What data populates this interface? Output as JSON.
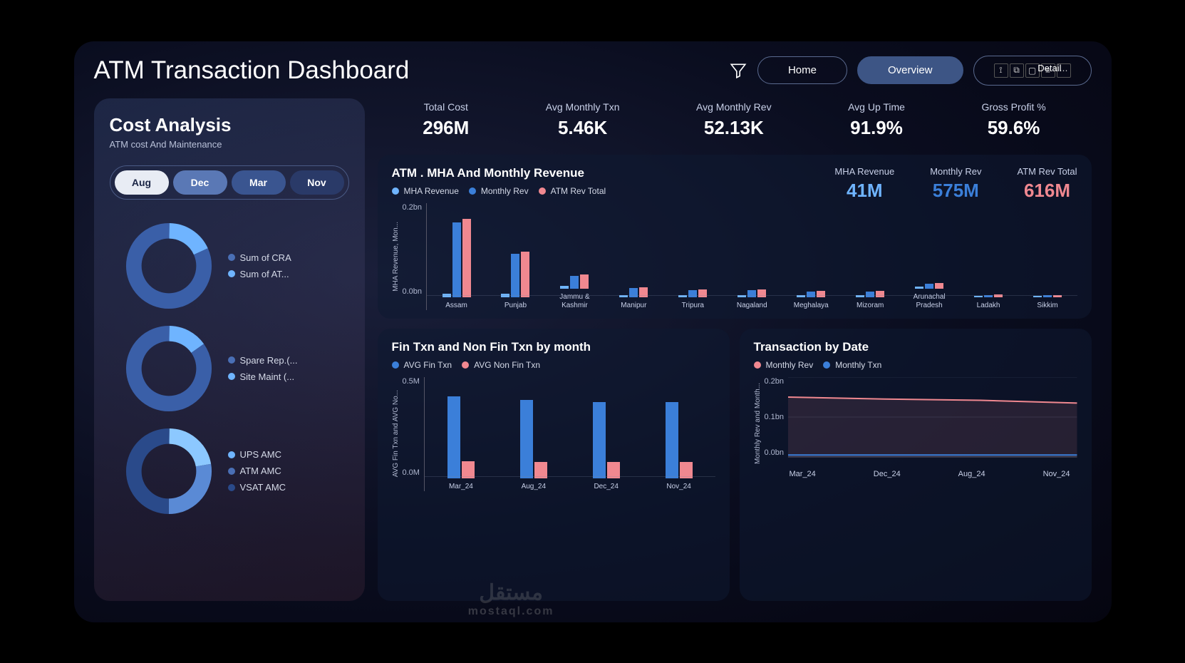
{
  "title": "ATM Transaction Dashboard",
  "nav": {
    "home": "Home",
    "overview": "Overview",
    "detail": "Detail"
  },
  "colors": {
    "blue": "#3b7fd9",
    "lightblue": "#6fb4ff",
    "midblue": "#4a6fb5",
    "pink": "#f08890",
    "darkblue": "#2a4a8a"
  },
  "costAnalysis": {
    "title": "Cost Analysis",
    "subtitle": "ATM cost And Maintenance",
    "months": [
      {
        "label": "Aug",
        "bg": "#e8ecf4",
        "fg": "#1a2545"
      },
      {
        "label": "Dec",
        "bg": "#5a78b5",
        "fg": "#ffffff"
      },
      {
        "label": "Mar",
        "bg": "#3a5590",
        "fg": "#ffffff"
      },
      {
        "label": "Nov",
        "bg": "#2a3a68",
        "fg": "#ffffff"
      }
    ],
    "donuts": [
      {
        "segments": [
          {
            "color": "#6fb4ff",
            "pct": 18
          },
          {
            "color": "#3a5fa8",
            "pct": 82
          }
        ],
        "legend": [
          {
            "color": "#4a6fb5",
            "label": "Sum of CRA"
          },
          {
            "color": "#6fb4ff",
            "label": "Sum of AT..."
          }
        ]
      },
      {
        "segments": [
          {
            "color": "#6fb4ff",
            "pct": 15
          },
          {
            "color": "#3a5fa8",
            "pct": 85
          }
        ],
        "legend": [
          {
            "color": "#4a6fb5",
            "label": "Spare Rep.(..."
          },
          {
            "color": "#6fb4ff",
            "label": "Site Maint (..."
          }
        ]
      },
      {
        "segments": [
          {
            "color": "#8cc8ff",
            "pct": 22
          },
          {
            "color": "#5a8ad5",
            "pct": 28
          },
          {
            "color": "#2a4a8a",
            "pct": 50
          }
        ],
        "legend": [
          {
            "color": "#6fb4ff",
            "label": "UPS AMC"
          },
          {
            "color": "#4a6fb5",
            "label": "ATM AMC"
          },
          {
            "color": "#2a4a8a",
            "label": "VSAT AMC"
          }
        ]
      }
    ]
  },
  "kpis": [
    {
      "label": "Total Cost",
      "value": "296M"
    },
    {
      "label": "Avg Monthly Txn",
      "value": "5.46K"
    },
    {
      "label": "Avg Monthly Rev",
      "value": "52.13K"
    },
    {
      "label": "Avg Up Time",
      "value": "91.9%"
    },
    {
      "label": "Gross Profit %",
      "value": "59.6%"
    }
  ],
  "revenueChart": {
    "title": "ATM . MHA And Monthly Revenue",
    "legend": [
      {
        "color": "#6fb4ff",
        "label": "MHA Revenue"
      },
      {
        "color": "#3b7fd9",
        "label": "Monthly Rev"
      },
      {
        "color": "#f08890",
        "label": "ATM Rev Total"
      }
    ],
    "kpis": [
      {
        "label": "MHA Revenue",
        "value": "41M",
        "color": "#6fb4ff"
      },
      {
        "label": "Monthly Rev",
        "value": "575M",
        "color": "#3b7fd9"
      },
      {
        "label": "ATM Rev Total",
        "value": "616M",
        "color": "#f08890"
      }
    ],
    "yLabel": "MHA Revenue, Mon...",
    "yTicks": [
      "0.2bn",
      "0.0bn"
    ],
    "categories": [
      {
        "name": "Assam",
        "v": [
          4,
          95,
          100
        ]
      },
      {
        "name": "Punjab",
        "v": [
          4,
          55,
          58
        ]
      },
      {
        "name": "Jammu & Kashmir",
        "v": [
          3,
          16,
          18
        ]
      },
      {
        "name": "Manipur",
        "v": [
          2,
          11,
          12
        ]
      },
      {
        "name": "Tripura",
        "v": [
          2,
          9,
          10
        ]
      },
      {
        "name": "Nagaland",
        "v": [
          2,
          9,
          10
        ]
      },
      {
        "name": "Meghalaya",
        "v": [
          2,
          7,
          8
        ]
      },
      {
        "name": "Mizoram",
        "v": [
          2,
          7,
          8
        ]
      },
      {
        "name": "Arunachal Pradesh",
        "v": [
          2,
          6,
          7
        ]
      },
      {
        "name": "Ladakh",
        "v": [
          1,
          2,
          3
        ]
      },
      {
        "name": "Sikkim",
        "v": [
          1,
          2,
          2
        ]
      }
    ]
  },
  "finTxn": {
    "title": "Fin Txn and Non Fin Txn by month",
    "legend": [
      {
        "color": "#3b7fd9",
        "label": "AVG Fin Txn"
      },
      {
        "color": "#f08890",
        "label": "AVG Non Fin Txn"
      }
    ],
    "yLabel": "AVG Fin Txn and AVG No...",
    "yTicks": [
      "0.5M",
      "0.0M"
    ],
    "categories": [
      {
        "name": "Mar_24",
        "v": [
          88,
          18
        ]
      },
      {
        "name": "Aug_24",
        "v": [
          84,
          17
        ]
      },
      {
        "name": "Dec_24",
        "v": [
          82,
          17
        ]
      },
      {
        "name": "Nov_24",
        "v": [
          82,
          17
        ]
      }
    ]
  },
  "txnByDate": {
    "title": "Transaction by Date",
    "legend": [
      {
        "color": "#f08890",
        "label": "Monthly Rev"
      },
      {
        "color": "#3b7fd9",
        "label": "Monthly Txn"
      }
    ],
    "yLabel": "Monthly Rev and Month...",
    "yTicks": [
      "0.2bn",
      "0.1bn",
      "0.0bn"
    ],
    "xTicks": [
      "Mar_24",
      "Dec_24",
      "Aug_24",
      "Nov_24"
    ],
    "series": {
      "rev": [
        0.15,
        0.145,
        0.142,
        0.135
      ],
      "txn": [
        0.005,
        0.005,
        0.005,
        0.005
      ]
    }
  },
  "watermark": {
    "line1": "مستقل",
    "line2": "mostaql.com"
  }
}
